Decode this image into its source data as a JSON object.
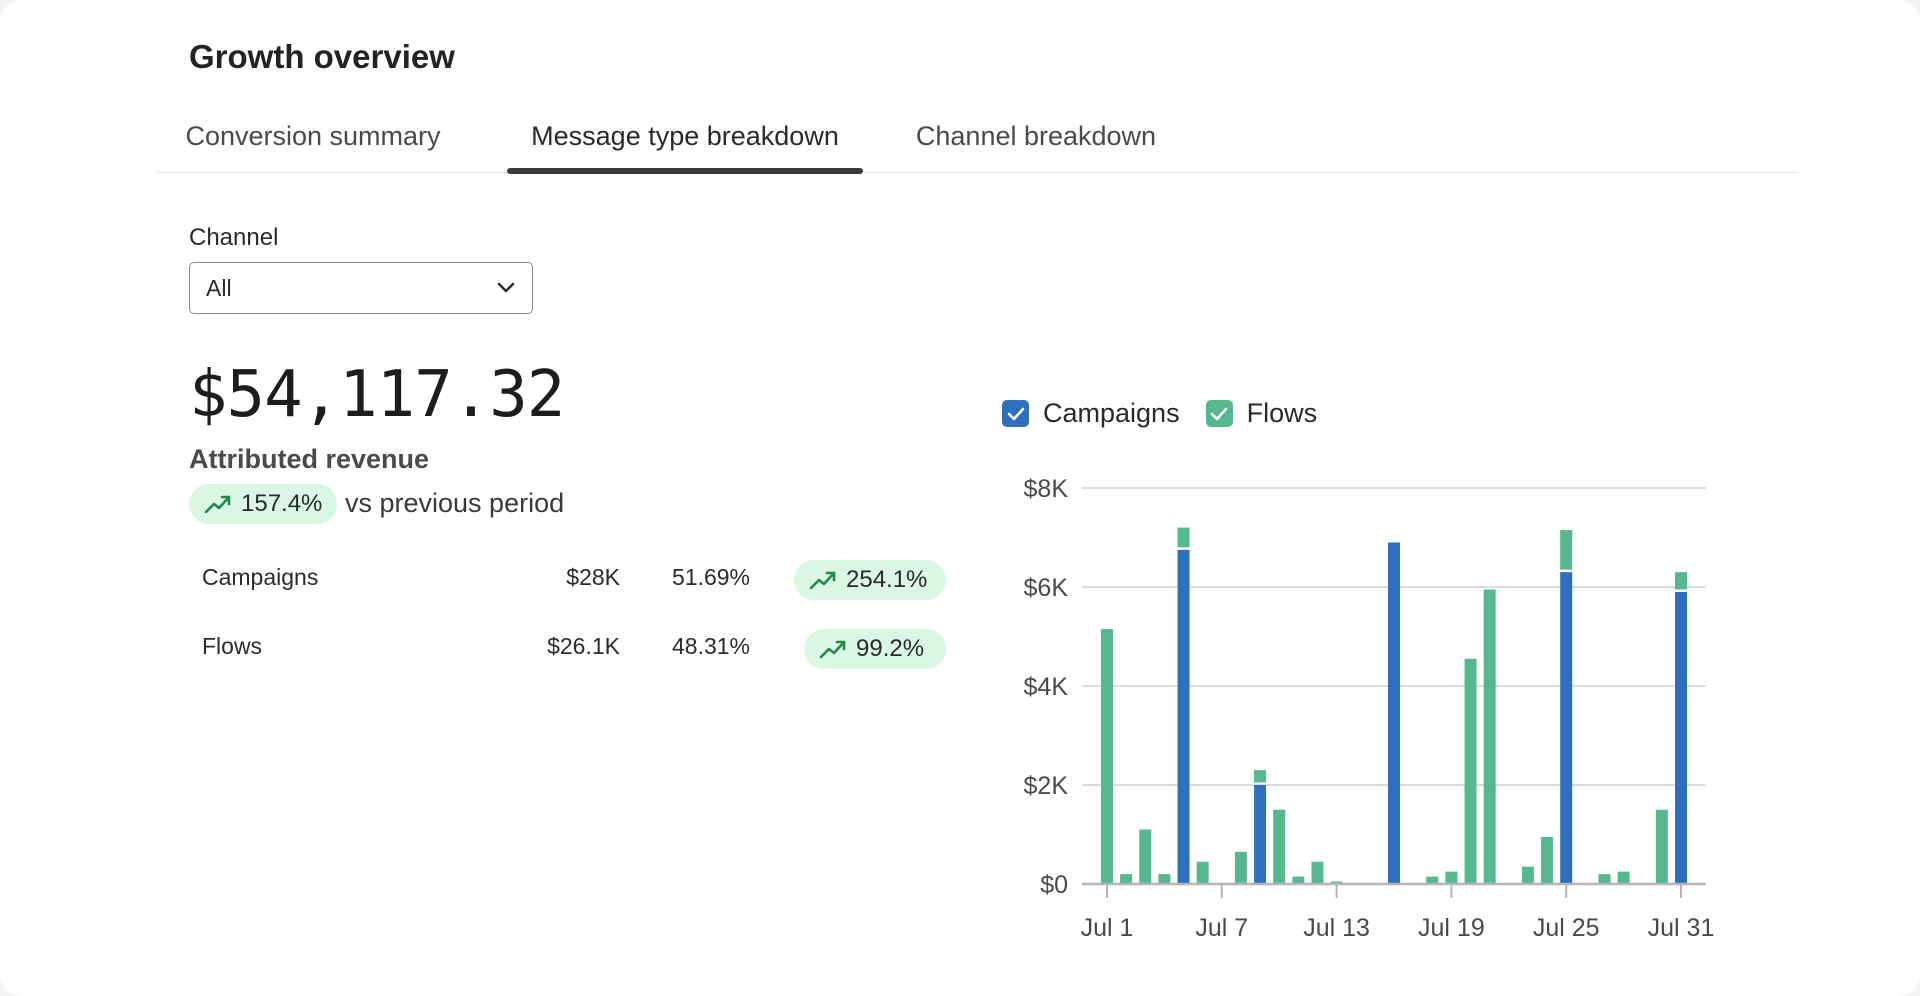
{
  "page": {
    "title": "Growth overview"
  },
  "tabs": [
    {
      "label": "Conversion summary",
      "active": false
    },
    {
      "label": "Message type breakdown",
      "active": true
    },
    {
      "label": "Channel breakdown",
      "active": false
    }
  ],
  "filter": {
    "label": "Channel",
    "value": "All"
  },
  "summary": {
    "value": "$54,117.32",
    "label": "Attributed revenue",
    "change": "157.4%",
    "change_suffix": "vs previous period"
  },
  "breakdown": [
    {
      "name": "Campaigns",
      "amount": "$28K",
      "share": "51.69%",
      "change": "254.1%"
    },
    {
      "name": "Flows",
      "amount": "$26.1K",
      "share": "48.31%",
      "change": "99.2%"
    }
  ],
  "legend": [
    {
      "label": "Campaigns",
      "checked": true,
      "color": "#2f6fbf"
    },
    {
      "label": "Flows",
      "checked": true,
      "color": "#55b88e"
    }
  ],
  "colors": {
    "campaigns": "#2f6fbf",
    "flows": "#55b88e",
    "trend_up": "#1f8a4c",
    "pill_bg": "#d9f7e4"
  },
  "chart_data": {
    "type": "bar",
    "stacked": true,
    "categories": [
      "Jul 1",
      "Jul 2",
      "Jul 3",
      "Jul 4",
      "Jul 5",
      "Jul 6",
      "Jul 7",
      "Jul 8",
      "Jul 9",
      "Jul 10",
      "Jul 11",
      "Jul 12",
      "Jul 13",
      "Jul 14",
      "Jul 15",
      "Jul 16",
      "Jul 17",
      "Jul 18",
      "Jul 19",
      "Jul 20",
      "Jul 21",
      "Jul 22",
      "Jul 23",
      "Jul 24",
      "Jul 25",
      "Jul 26",
      "Jul 27",
      "Jul 28",
      "Jul 29",
      "Jul 30",
      "Jul 31"
    ],
    "x_tick_labels": [
      "Jul 1",
      "Jul 7",
      "Jul 13",
      "Jul 19",
      "Jul 25",
      "Jul 31"
    ],
    "series": [
      {
        "name": "Campaigns",
        "values": [
          0,
          0,
          0,
          0,
          6.75,
          0,
          0,
          0,
          2.0,
          0,
          0,
          0,
          0,
          0,
          0,
          6.9,
          0,
          0,
          0,
          0,
          0,
          0,
          0,
          0,
          6.3,
          0,
          0,
          0,
          0,
          0,
          5.9
        ]
      },
      {
        "name": "Flows",
        "values": [
          5.15,
          0.2,
          1.1,
          0.2,
          0.45,
          0.45,
          0,
          0.65,
          0.3,
          1.5,
          0.15,
          0.45,
          0.05,
          0,
          0,
          0,
          0,
          0.15,
          0.25,
          4.55,
          5.95,
          0,
          0.35,
          0.95,
          0.85,
          0,
          0.2,
          0.25,
          0,
          1.5,
          0.4
        ]
      }
    ],
    "y_unit": "thousands of dollars",
    "ylim": [
      0,
      8
    ],
    "y_ticks": [
      0,
      2,
      4,
      6,
      8
    ],
    "y_tick_labels": [
      "$0",
      "$2K",
      "$4K",
      "$6K",
      "$8K"
    ],
    "grid": true,
    "legend_position": "top-left"
  }
}
